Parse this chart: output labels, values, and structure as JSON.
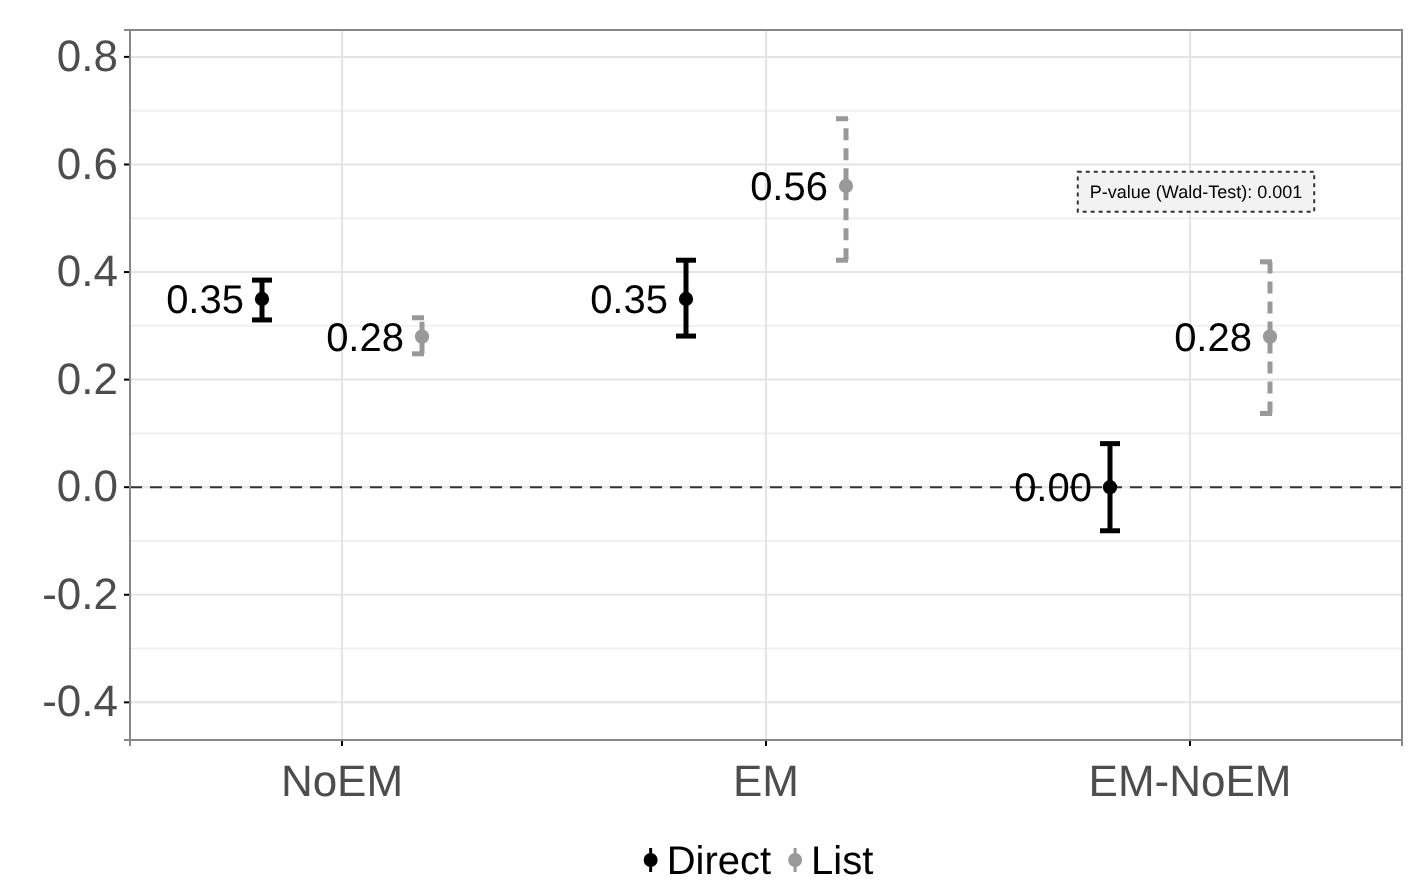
{
  "chart_data": {
    "type": "scatter",
    "categories": [
      "NoEM",
      "EM",
      "EM-NoEM"
    ],
    "series": [
      {
        "name": "Direct",
        "color": "#000000",
        "values": [
          0.35,
          0.35,
          0.0
        ],
        "errors": [
          [
            0.311,
            0.385
          ],
          [
            0.281,
            0.422
          ],
          [
            -0.081,
            0.081
          ]
        ],
        "value_labels": [
          "0.35",
          "0.35",
          "0.00"
        ],
        "line_style": "solid"
      },
      {
        "name": "List",
        "color": "#999999",
        "values": [
          0.28,
          0.56,
          0.28
        ],
        "errors": [
          [
            0.248,
            0.315
          ],
          [
            0.422,
            0.685
          ],
          [
            0.137,
            0.419
          ]
        ],
        "value_labels": [
          "0.28",
          "0.56",
          "0.28"
        ],
        "line_style": "dashed"
      }
    ],
    "ylim": [
      -0.47,
      0.85
    ],
    "yticks": [
      {
        "value": -0.4,
        "label": "-0.4"
      },
      {
        "value": -0.2,
        "label": "-0.2"
      },
      {
        "value": 0,
        "label": "0.0"
      },
      {
        "value": 0.2,
        "label": "0.2"
      },
      {
        "value": 0.4,
        "label": "0.4"
      },
      {
        "value": 0.6,
        "label": "0.6"
      },
      {
        "value": 0.8,
        "label": "0.8"
      }
    ],
    "ref_lines": [
      {
        "axis": "y",
        "value": 0,
        "line_style": "dashed",
        "color": "#333333"
      }
    ],
    "annotations": [
      "P-value (Wald-Test): 0.001"
    ],
    "grid": true,
    "legend": "bottom",
    "marker": "circle"
  }
}
